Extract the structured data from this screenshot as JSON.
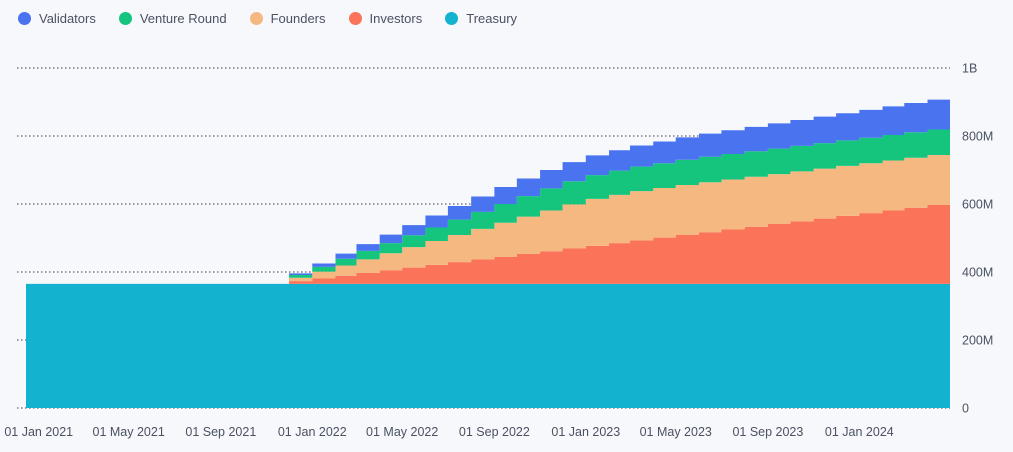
{
  "chart_data": {
    "type": "area",
    "stacked": true,
    "step": true,
    "title": "",
    "xlabel": "",
    "ylabel": "",
    "ylim": [
      0,
      1000000000
    ],
    "y_ticks": [
      {
        "value": 0,
        "label": "0"
      },
      {
        "value": 200000000,
        "label": "200M"
      },
      {
        "value": 400000000,
        "label": "400M"
      },
      {
        "value": 600000000,
        "label": "600M"
      },
      {
        "value": 800000000,
        "label": "800M"
      },
      {
        "value": 1000000000,
        "label": "1B"
      }
    ],
    "x_ticks": [
      "01 Jan 2021",
      "01 May 2021",
      "01 Sep 2021",
      "01 Jan 2022",
      "01 May 2022",
      "01 Sep 2022",
      "01 Jan 2023",
      "01 May 2023",
      "01 Sep 2023",
      "01 Jan 2024"
    ],
    "grid": "horizontal dotted",
    "legend_position": "top-left",
    "x_start": "2020-12-15",
    "x_end": "2024-05-01",
    "dates": [
      "2020-12-15",
      "2021-12-01",
      "2022-01-01",
      "2022-02-01",
      "2022-03-01",
      "2022-04-01",
      "2022-05-01",
      "2022-06-01",
      "2022-07-01",
      "2022-08-01",
      "2022-09-01",
      "2022-10-01",
      "2022-11-01",
      "2022-12-01",
      "2023-01-01",
      "2023-02-01",
      "2023-03-01",
      "2023-04-01",
      "2023-05-01",
      "2023-06-01",
      "2023-07-01",
      "2023-08-01",
      "2023-09-01",
      "2023-10-01",
      "2023-11-01",
      "2023-12-01",
      "2024-01-01",
      "2024-02-01",
      "2024-03-01",
      "2024-04-01",
      "2024-05-01"
    ],
    "series": [
      {
        "name": "Treasury",
        "color": "#13b3cf",
        "values": [
          365000000,
          365000000,
          365000000,
          365000000,
          365000000,
          365000000,
          365000000,
          365000000,
          365000000,
          365000000,
          365000000,
          365000000,
          365000000,
          365000000,
          365000000,
          365000000,
          365000000,
          365000000,
          365000000,
          365000000,
          365000000,
          365000000,
          365000000,
          365000000,
          365000000,
          365000000,
          365000000,
          365000000,
          365000000,
          365000000,
          365000000
        ]
      },
      {
        "name": "Investors",
        "color": "#fb7358",
        "values": [
          0,
          8000000,
          16000000,
          24000000,
          32000000,
          40000000,
          48000000,
          56000000,
          64000000,
          72000000,
          80000000,
          88000000,
          96000000,
          104000000,
          112000000,
          120000000,
          128000000,
          136000000,
          144000000,
          152000000,
          160000000,
          168000000,
          176000000,
          184000000,
          192000000,
          200000000,
          208000000,
          216000000,
          224000000,
          232000000,
          232000000
        ]
      },
      {
        "name": "Founders",
        "color": "#f5b880",
        "values": [
          0,
          10000000,
          20000000,
          30000000,
          40000000,
          50000000,
          60000000,
          70000000,
          80000000,
          90000000,
          100000000,
          110000000,
          120000000,
          130000000,
          138000000,
          142000000,
          145000000,
          146000000,
          147000000,
          147000000,
          147000000,
          147000000,
          147000000,
          147000000,
          147000000,
          147000000,
          147000000,
          147000000,
          147000000,
          147000000,
          147000000
        ]
      },
      {
        "name": "Venture Round",
        "color": "#15c57e",
        "values": [
          0,
          8000000,
          14000000,
          20000000,
          25000000,
          30000000,
          35000000,
          40000000,
          45000000,
          50000000,
          55000000,
          60000000,
          65000000,
          68000000,
          70000000,
          71000000,
          72000000,
          73000000,
          74000000,
          75000000,
          75000000,
          75000000,
          75000000,
          75000000,
          75000000,
          75000000,
          75000000,
          75000000,
          75000000,
          75000000,
          75000000
        ]
      },
      {
        "name": "Validators",
        "color": "#4a73f0",
        "values": [
          0,
          5000000,
          10000000,
          15000000,
          20000000,
          25000000,
          30000000,
          35000000,
          40000000,
          45000000,
          50000000,
          52000000,
          54000000,
          56000000,
          58000000,
          60000000,
          62000000,
          64000000,
          66000000,
          68000000,
          70000000,
          72000000,
          74000000,
          76000000,
          78000000,
          80000000,
          82000000,
          84000000,
          86000000,
          88000000,
          88000000
        ]
      }
    ]
  },
  "legend": {
    "items": [
      {
        "label": "Validators",
        "color": "#4a73f0"
      },
      {
        "label": "Venture Round",
        "color": "#15c57e"
      },
      {
        "label": "Founders",
        "color": "#f5b880"
      },
      {
        "label": "Investors",
        "color": "#fb7358"
      },
      {
        "label": "Treasury",
        "color": "#13b3cf"
      }
    ]
  }
}
